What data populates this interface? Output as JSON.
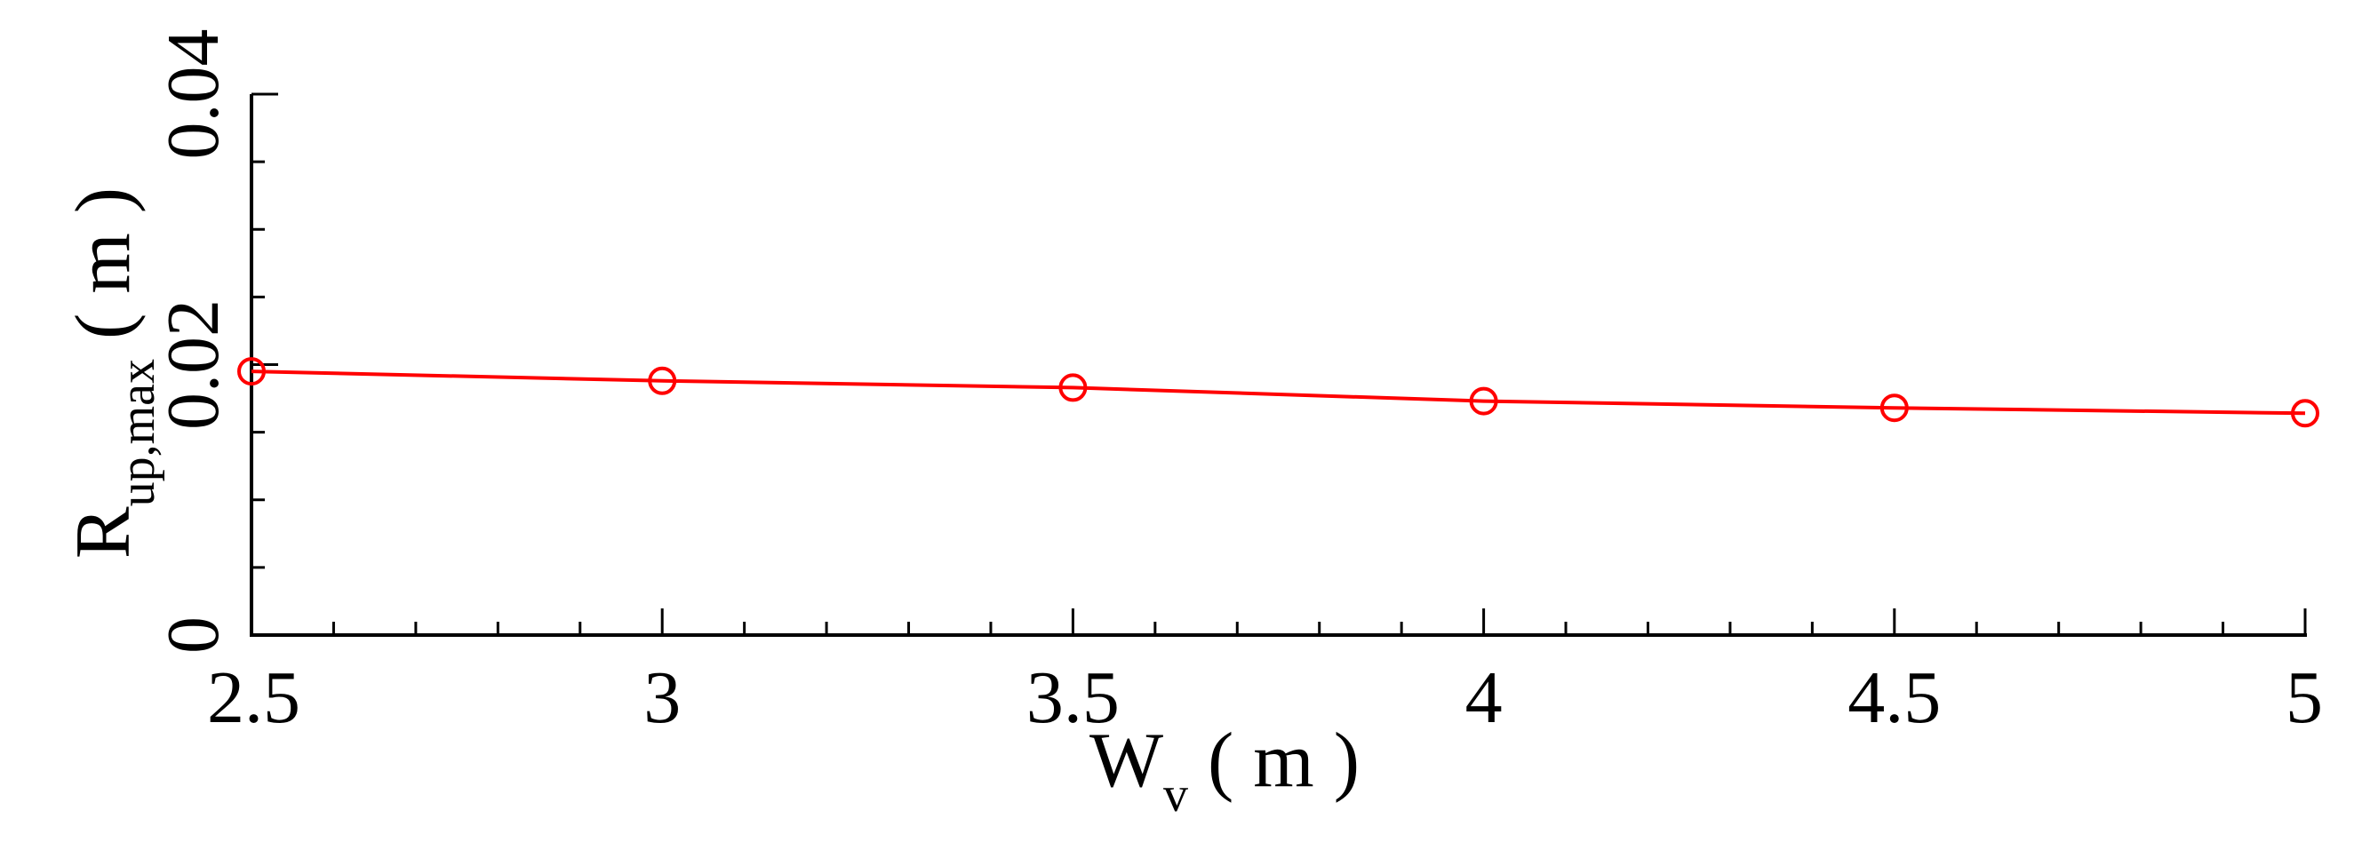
{
  "chart_data": {
    "type": "line",
    "title": "",
    "xlabel": {
      "main": "W",
      "sub": "v",
      "unit": "( m )"
    },
    "ylabel": {
      "main": "R",
      "sub": "up,max",
      "unit": "( m )"
    },
    "xlim": [
      2.5,
      5
    ],
    "ylim": [
      0,
      0.04
    ],
    "x_ticks": [
      2.5,
      3,
      3.5,
      4,
      4.5,
      5
    ],
    "x_tick_labels": [
      "2.5",
      "3",
      "3.5",
      "4",
      "4.5",
      "5"
    ],
    "x_minor_step": 0.1,
    "y_ticks": [
      0,
      0.02,
      0.04
    ],
    "y_tick_labels": [
      "0",
      "0.02",
      "0.04"
    ],
    "y_minor_step": 0.005,
    "grid": false,
    "legend": "none",
    "series": [
      {
        "color": "#ff0000",
        "marker": "circle-open",
        "x": [
          2.5,
          3,
          3.5,
          4,
          4.5,
          5
        ],
        "y": [
          0.0195,
          0.0188,
          0.0183,
          0.0173,
          0.0168,
          0.0164
        ]
      }
    ]
  }
}
